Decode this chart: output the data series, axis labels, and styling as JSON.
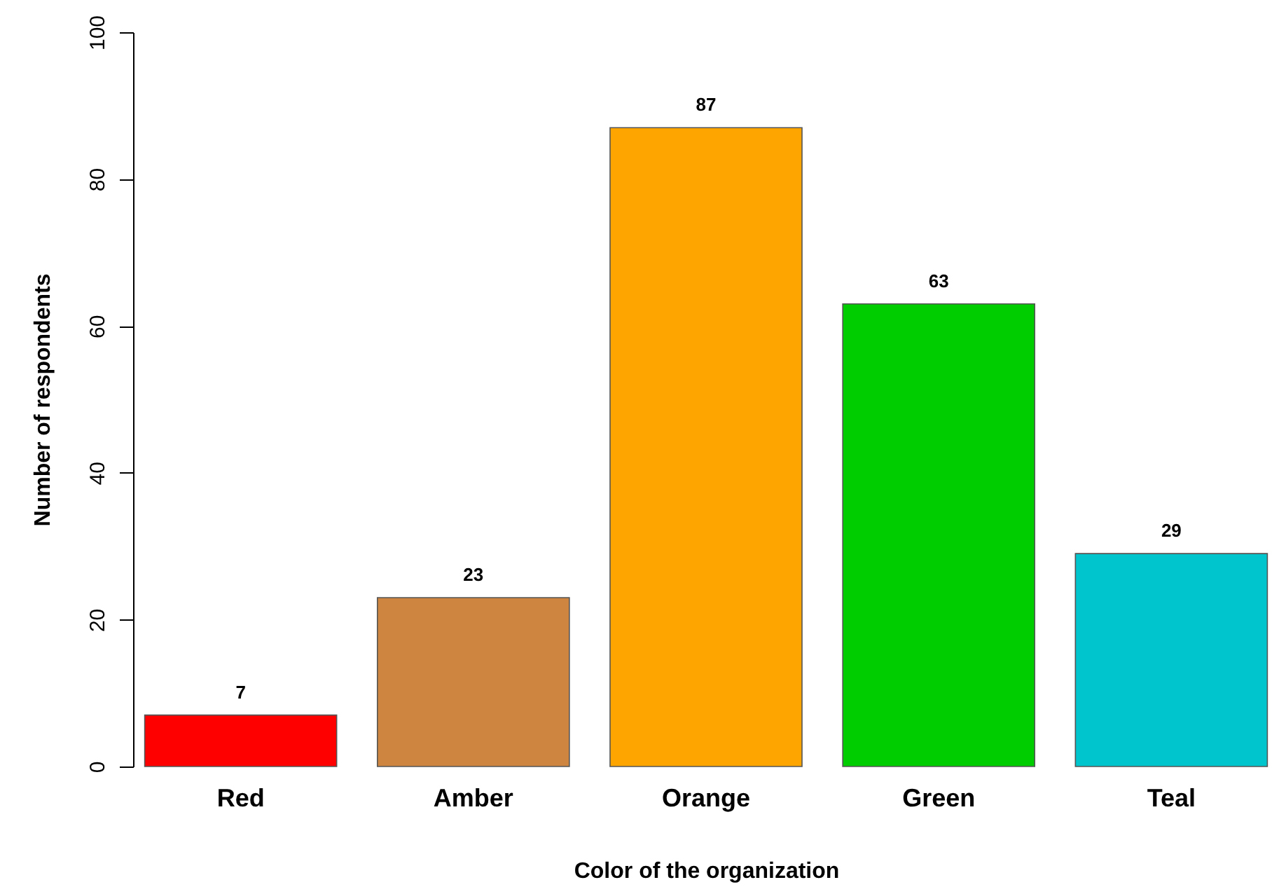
{
  "chart_data": {
    "type": "bar",
    "xlabel": "Color of the organization",
    "ylabel": "Number of respondents",
    "categories": [
      "Red",
      "Amber",
      "Orange",
      "Green",
      "Teal"
    ],
    "values": [
      7,
      23,
      87,
      63,
      29
    ],
    "colors": [
      "#ff0000",
      "#cd853f",
      "#ffa500",
      "#00cd00",
      "#00c5cd"
    ],
    "ylim": [
      0,
      100
    ],
    "yticks": [
      0,
      20,
      40,
      60,
      80,
      100
    ],
    "grid": false,
    "data_labels": true
  }
}
